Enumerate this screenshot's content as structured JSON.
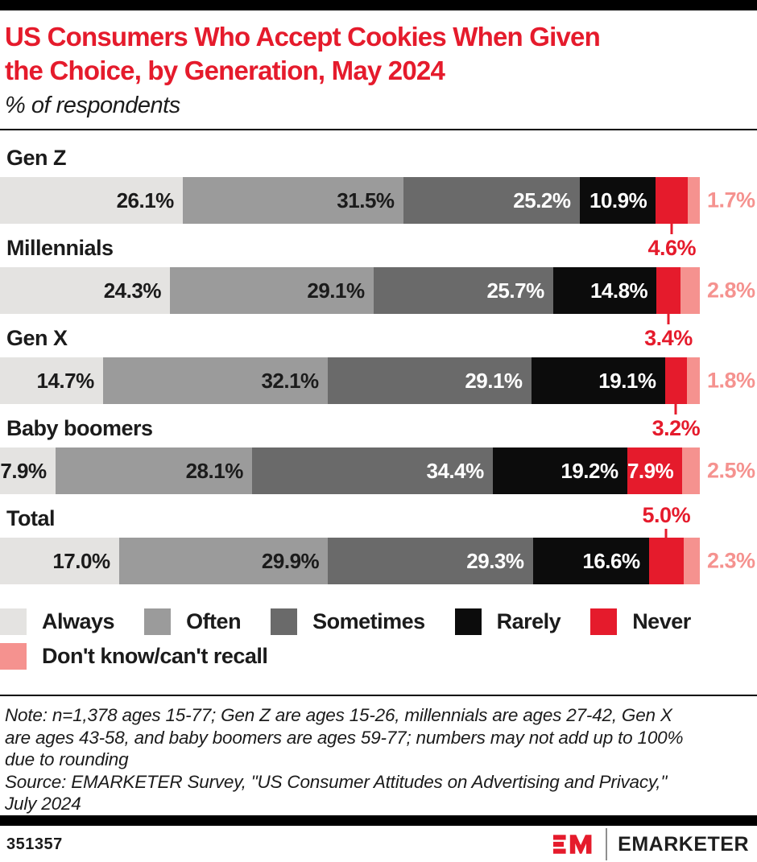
{
  "header": {
    "title_lines": [
      "US Consumers Who Accept Cookies When Given",
      "the Choice, by Generation, May 2024"
    ],
    "subtitle": "% of respondents"
  },
  "colors": {
    "accent_red": "#e51b2c",
    "callout_pink": "#f5928f",
    "text": "#1b1b1b",
    "frame_bars": "#000000"
  },
  "chart_data": {
    "type": "bar",
    "orientation": "horizontal_stacked",
    "title": "US Consumers Who Accept Cookies When Given the Choice, by Generation, May 2024",
    "subtitle": "% of respondents",
    "unit": "%",
    "xlim": [
      0,
      100
    ],
    "grid": false,
    "legend_position": "bottom",
    "categories": [
      "Gen Z",
      "Millennials",
      "Gen X",
      "Baby boomers",
      "Total"
    ],
    "series": [
      {
        "name": "Always",
        "color": "#e4e3e1",
        "values": [
          26.1,
          24.3,
          14.7,
          7.9,
          17.0
        ]
      },
      {
        "name": "Often",
        "color": "#9b9b9b",
        "values": [
          31.5,
          29.1,
          32.1,
          28.1,
          29.9
        ]
      },
      {
        "name": "Sometimes",
        "color": "#6a6a6a",
        "values": [
          25.2,
          25.7,
          29.1,
          34.4,
          29.3
        ]
      },
      {
        "name": "Rarely",
        "color": "#0c0c0c",
        "values": [
          10.9,
          14.8,
          19.1,
          19.2,
          16.6
        ]
      },
      {
        "name": "Never",
        "color": "#e51b2c",
        "values": [
          4.6,
          3.4,
          3.2,
          7.9,
          5.0
        ]
      },
      {
        "name": "Don't know/can't recall",
        "color": "#f5928f",
        "values": [
          1.7,
          2.8,
          1.8,
          2.5,
          2.3
        ]
      }
    ],
    "rows": [
      {
        "category": "Gen Z",
        "always": {
          "label": "26.1%",
          "value": 26.1
        },
        "often": {
          "label": "31.5%",
          "value": 31.5
        },
        "sometimes": {
          "label": "25.2%",
          "value": 25.2
        },
        "rarely": {
          "label": "10.9%",
          "value": 10.9
        },
        "never": {
          "label": "4.6%",
          "value": 4.6,
          "label_position": "below"
        },
        "dont_know": {
          "label": "1.7%",
          "value": 1.7,
          "label_position": "right"
        }
      },
      {
        "category": "Millennials",
        "always": {
          "label": "24.3%",
          "value": 24.3
        },
        "often": {
          "label": "29.1%",
          "value": 29.1
        },
        "sometimes": {
          "label": "25.7%",
          "value": 25.7
        },
        "rarely": {
          "label": "14.8%",
          "value": 14.8
        },
        "never": {
          "label": "3.4%",
          "value": 3.4,
          "label_position": "below"
        },
        "dont_know": {
          "label": "2.8%",
          "value": 2.8,
          "label_position": "right"
        }
      },
      {
        "category": "Gen X",
        "always": {
          "label": "14.7%",
          "value": 14.7
        },
        "often": {
          "label": "32.1%",
          "value": 32.1
        },
        "sometimes": {
          "label": "29.1%",
          "value": 29.1
        },
        "rarely": {
          "label": "19.1%",
          "value": 19.1
        },
        "never": {
          "label": "3.2%",
          "value": 3.2,
          "label_position": "below"
        },
        "dont_know": {
          "label": "1.8%",
          "value": 1.8,
          "label_position": "right"
        }
      },
      {
        "category": "Baby boomers",
        "always": {
          "label": "7.9%",
          "value": 7.9
        },
        "often": {
          "label": "28.1%",
          "value": 28.1
        },
        "sometimes": {
          "label": "34.4%",
          "value": 34.4
        },
        "rarely": {
          "label": "19.2%",
          "value": 19.2
        },
        "never": {
          "label": "7.9%",
          "value": 7.9,
          "label_position": "inside"
        },
        "dont_know": {
          "label": "2.5%",
          "value": 2.5,
          "label_position": "right"
        }
      },
      {
        "category": "Total",
        "always": {
          "label": "17.0%",
          "value": 17.0
        },
        "often": {
          "label": "29.9%",
          "value": 29.9
        },
        "sometimes": {
          "label": "29.3%",
          "value": 29.3
        },
        "rarely": {
          "label": "16.6%",
          "value": 16.6
        },
        "never": {
          "label": "5.0%",
          "value": 5.0,
          "label_position": "above"
        },
        "dont_know": {
          "label": "2.3%",
          "value": 2.3,
          "label_position": "right"
        }
      }
    ]
  },
  "notes": {
    "note_lines": [
      "Note: n=1,378 ages 15-77; Gen Z are ages 15-26, millennials are ages 27-42, Gen X",
      "are ages 43-58, and baby boomers are ages 59-77; numbers may not add up to 100%",
      "due to rounding"
    ],
    "source_lines": [
      "Source: EMARKETER Survey, \"US Consumer Attitudes on Advertising and Privacy,\"",
      "July 2024"
    ]
  },
  "footer": {
    "chart_id": "351357",
    "brand_name": "EMARKETER",
    "logo_monogram": "EM"
  }
}
